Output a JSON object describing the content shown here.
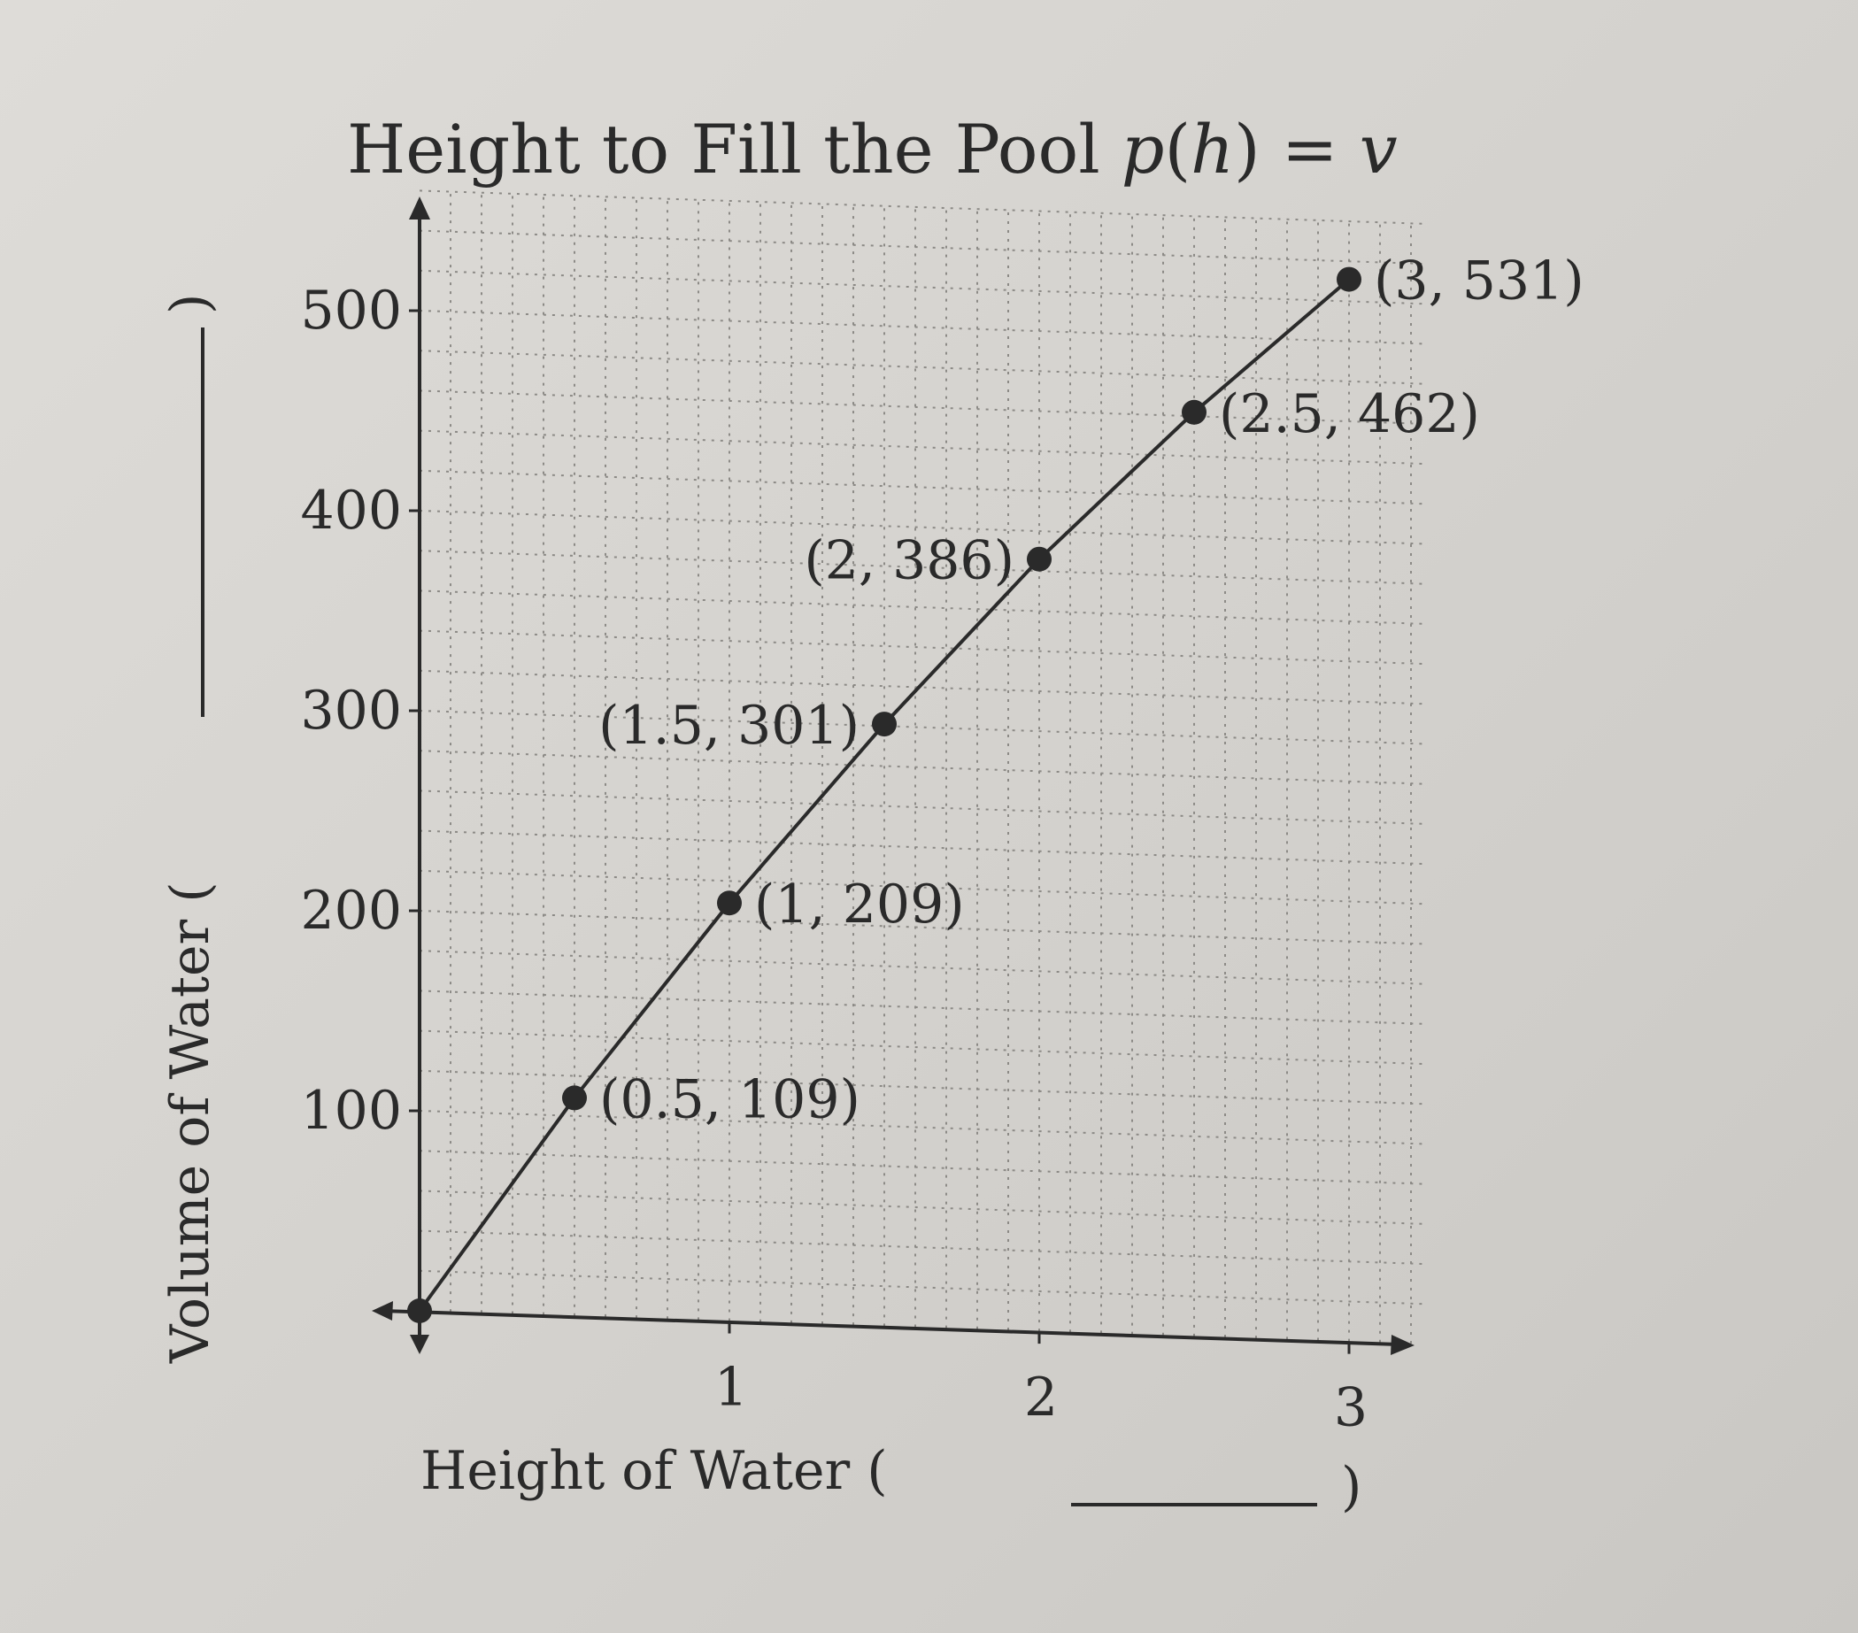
{
  "chart_data": {
    "type": "line",
    "title_text": "Height to Fill the Pool ",
    "title_func": "p",
    "title_paren_open": "(",
    "title_var": "h",
    "title_paren_close": ") = ",
    "title_result": "v",
    "xlabel": "Height of Water ( ",
    "xlabel_close": ")",
    "ylabel": "Volume of Water ( ",
    "ylabel_close": ")",
    "xlim": [
      0,
      3.25
    ],
    "ylim": [
      0,
      560
    ],
    "x_ticks": [
      1,
      2,
      3
    ],
    "x_tick_labels": [
      "1",
      "2",
      "3"
    ],
    "y_ticks": [
      100,
      200,
      300,
      400,
      500
    ],
    "y_tick_labels": [
      "100",
      "200",
      "300",
      "400",
      "500"
    ],
    "grid": true,
    "series": [
      {
        "points": [
          {
            "x": 0,
            "y": 0,
            "label": ""
          },
          {
            "x": 0.5,
            "y": 109,
            "label": "(0.5, 109)"
          },
          {
            "x": 1,
            "y": 209,
            "label": "(1, 209)"
          },
          {
            "x": 1.5,
            "y": 301,
            "label": "(1.5, 301)"
          },
          {
            "x": 2,
            "y": 386,
            "label": "(2, 386)"
          },
          {
            "x": 2.5,
            "y": 462,
            "label": "(2.5, 462)"
          },
          {
            "x": 3,
            "y": 531,
            "label": "(3, 531)"
          }
        ]
      }
    ]
  },
  "colors": {
    "ink": "#2a2a2a",
    "grid": "#8c8a86",
    "paper": "#d8d6d2"
  }
}
